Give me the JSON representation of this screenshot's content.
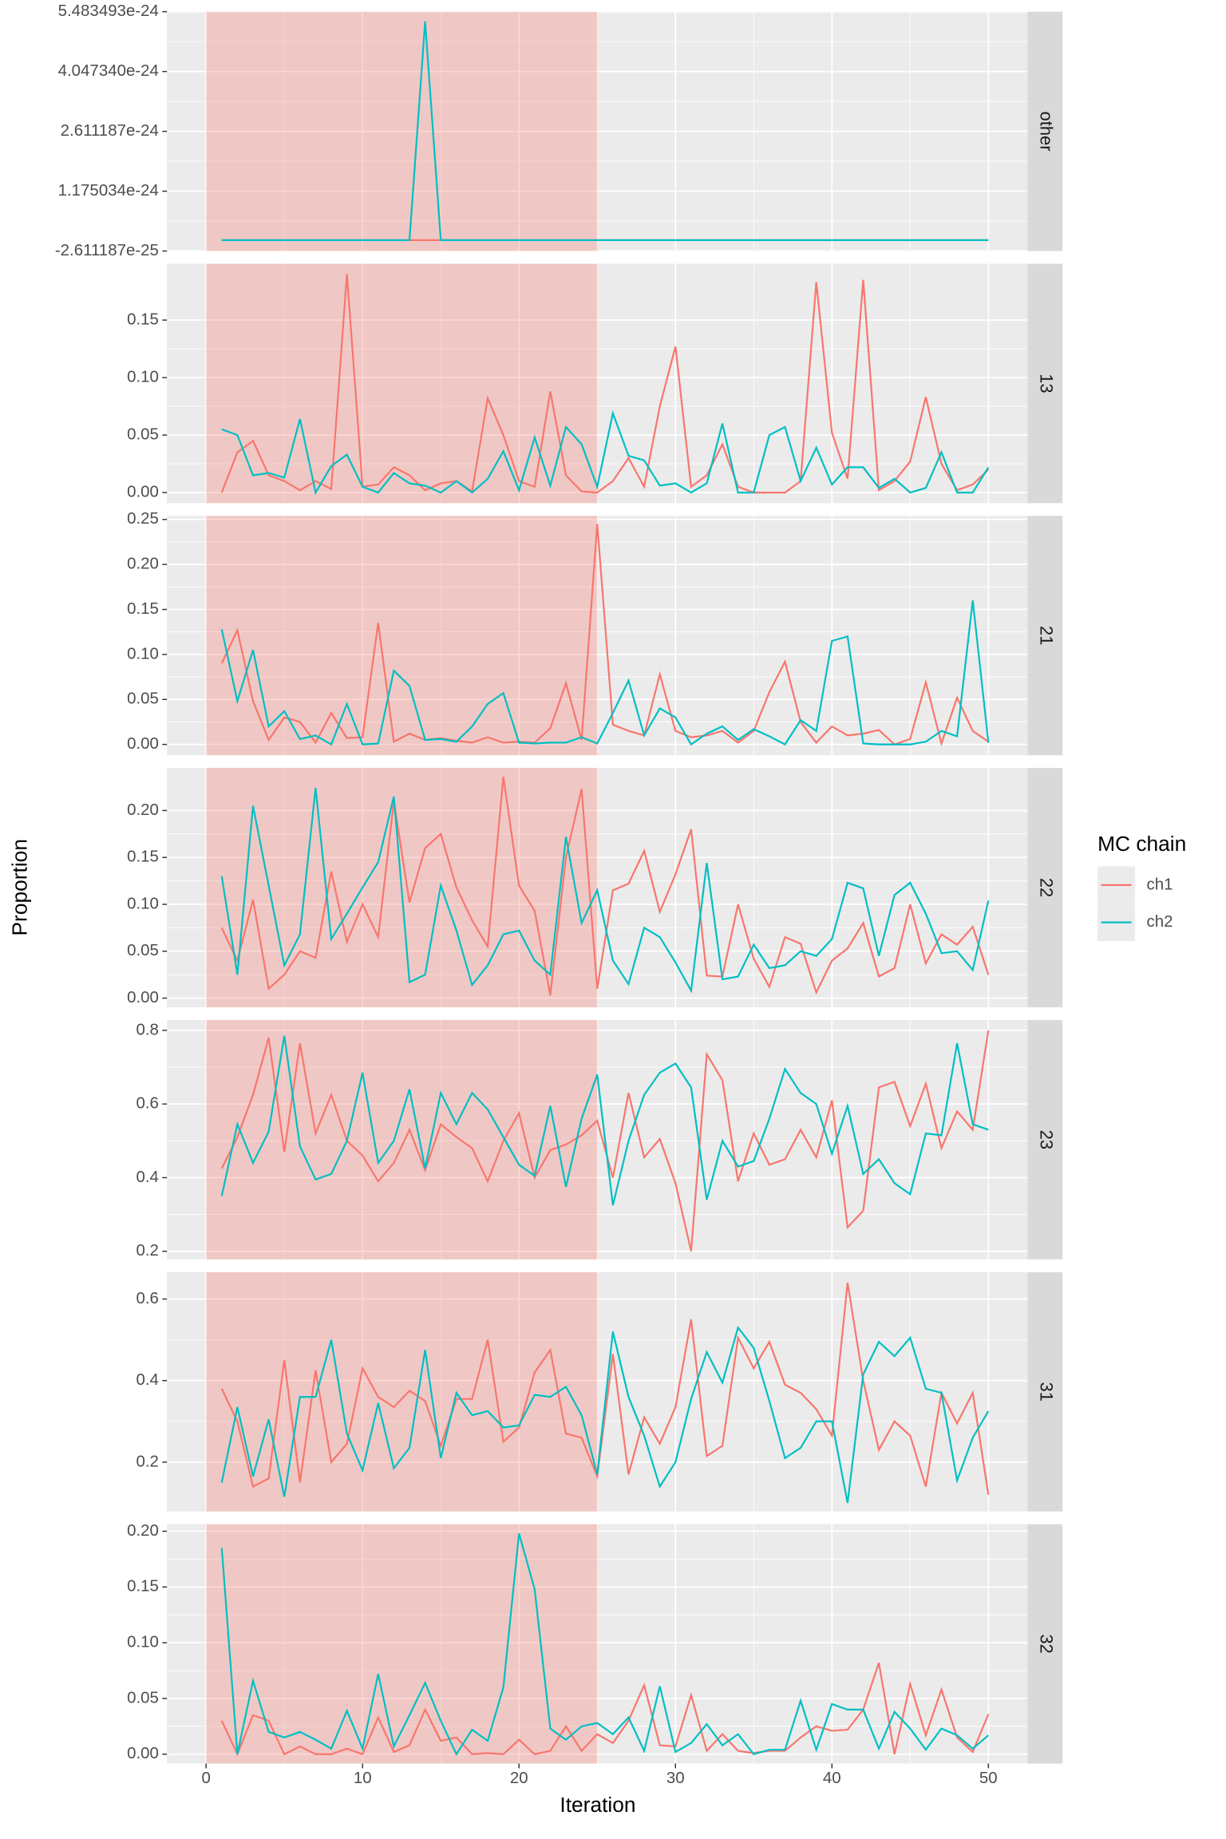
{
  "chart_data": {
    "type": "line",
    "xlabel": "Iteration",
    "ylabel": "Proportion",
    "legend_title": "MC chain",
    "grid": true,
    "shaded_x": [
      0,
      25
    ],
    "shade_color": "#F8766D",
    "x": [
      1,
      2,
      3,
      4,
      5,
      6,
      7,
      8,
      9,
      10,
      11,
      12,
      13,
      14,
      15,
      16,
      17,
      18,
      19,
      20,
      21,
      22,
      23,
      24,
      25,
      26,
      27,
      28,
      29,
      30,
      31,
      32,
      33,
      34,
      35,
      36,
      37,
      38,
      39,
      40,
      41,
      42,
      43,
      44,
      45,
      46,
      47,
      48,
      49,
      50
    ],
    "xlim": [
      -2.5,
      52.5
    ],
    "xticks": [
      0,
      10,
      20,
      30,
      40,
      50
    ],
    "panels": [
      {
        "label": "other",
        "ylim": [
          -2.611187e-25,
          5.483493e-24
        ],
        "yticks": [
          -2.611187e-25,
          1.175034e-24,
          2.611187e-24,
          {
            "value": 4.04734e-24,
            "label": "4.047340e-24"
          },
          5.483493e-24
        ],
        "series": [
          {
            "name": "ch1",
            "color": "#F8766D",
            "values": [
              0,
              0,
              0,
              0,
              0,
              0,
              0,
              0,
              0,
              0,
              0,
              0,
              0,
              0,
              0,
              0,
              0,
              0,
              0,
              0,
              0,
              0,
              0,
              0,
              0,
              0,
              0,
              0,
              0,
              0,
              0,
              0,
              0,
              0,
              0,
              0,
              0,
              0,
              0,
              0,
              0,
              0,
              0,
              0,
              0,
              0,
              0,
              0,
              0,
              0
            ]
          },
          {
            "name": "ch2",
            "color": "#00BFC4",
            "values": [
              0,
              0,
              0,
              0,
              0,
              0,
              0,
              0,
              0,
              0,
              0,
              0,
              0,
              5.25e-24,
              0,
              0,
              0,
              0,
              0,
              0,
              0,
              0,
              0,
              0,
              0,
              0,
              0,
              0,
              0,
              0,
              0,
              0,
              0,
              0,
              0,
              0,
              0,
              0,
              0,
              0,
              0,
              0,
              0,
              0,
              0,
              0,
              0,
              0,
              0,
              0
            ]
          }
        ]
      },
      {
        "label": "13",
        "ylim": [
          -0.0092,
          0.199
        ],
        "yticks": [
          {
            "value": 0,
            "label": "0.00"
          },
          {
            "value": 0.05,
            "label": "0.05"
          },
          {
            "value": 0.1,
            "label": "0.10"
          },
          {
            "value": 0.15,
            "label": "0.15"
          }
        ],
        "series": [
          {
            "name": "ch1",
            "color": "#F8766D",
            "values": [
              0,
              0.035,
              0.045,
              0.015,
              0.01,
              0.002,
              0.01,
              0.003,
              0.19,
              0.005,
              0.007,
              0.022,
              0.015,
              0.002,
              0.008,
              0.01,
              0.001,
              0.082,
              0.05,
              0.01,
              0.005,
              0.088,
              0.015,
              0.001,
              0,
              0.01,
              0.03,
              0.005,
              0.075,
              0.127,
              0.005,
              0.015,
              0.042,
              0.005,
              0,
              0,
              0,
              0.01,
              0.183,
              0.052,
              0.012,
              0.185,
              0.002,
              0.01,
              0.027,
              0.083,
              0.025,
              0.002,
              0.007,
              0.02
            ]
          },
          {
            "name": "ch2",
            "color": "#00BFC4",
            "values": [
              0.055,
              0.05,
              0.015,
              0.017,
              0.013,
              0.064,
              0,
              0.023,
              0.033,
              0.005,
              0,
              0.017,
              0.008,
              0.006,
              0,
              0.01,
              0,
              0.012,
              0.036,
              0.002,
              0.048,
              0.006,
              0.057,
              0.042,
              0.005,
              0.069,
              0.032,
              0.028,
              0.006,
              0.008,
              0,
              0.008,
              0.06,
              0,
              0,
              0.05,
              0.057,
              0.01,
              0.039,
              0.007,
              0.022,
              0.022,
              0.004,
              0.012,
              0,
              0.004,
              0.035,
              0,
              0,
              0.022
            ]
          }
        ]
      },
      {
        "label": "21",
        "ylim": [
          -0.012,
          0.254
        ],
        "yticks": [
          {
            "value": 0,
            "label": "0.00"
          },
          {
            "value": 0.05,
            "label": "0.05"
          },
          {
            "value": 0.1,
            "label": "0.10"
          },
          {
            "value": 0.15,
            "label": "0.15"
          },
          {
            "value": 0.2,
            "label": "0.20"
          },
          {
            "value": 0.25,
            "label": "0.25"
          }
        ],
        "series": [
          {
            "name": "ch1",
            "color": "#F8766D",
            "values": [
              0.09,
              0.127,
              0.048,
              0.005,
              0.03,
              0.025,
              0.002,
              0.035,
              0.007,
              0.008,
              0.135,
              0.003,
              0.012,
              0.005,
              0.007,
              0.004,
              0.002,
              0.008,
              0.002,
              0.003,
              0.002,
              0.018,
              0.068,
              0.005,
              0.245,
              0.022,
              0.015,
              0.01,
              0.078,
              0.015,
              0.008,
              0.01,
              0.015,
              0.002,
              0.015,
              0.058,
              0.092,
              0.025,
              0.002,
              0.02,
              0.01,
              0.012,
              0.016,
              0,
              0.006,
              0.069,
              0.001,
              0.052,
              0.015,
              0.003
            ]
          },
          {
            "name": "ch2",
            "color": "#00BFC4",
            "values": [
              0.128,
              0.048,
              0.105,
              0.02,
              0.037,
              0.006,
              0.01,
              0,
              0.045,
              0,
              0.001,
              0.082,
              0.065,
              0.005,
              0.006,
              0.003,
              0.02,
              0.045,
              0.057,
              0.002,
              0.001,
              0.002,
              0.002,
              0.008,
              0.001,
              0.035,
              0.071,
              0.01,
              0.04,
              0.03,
              0,
              0.012,
              0.02,
              0.005,
              0.017,
              0.009,
              0,
              0.027,
              0.015,
              0.115,
              0.12,
              0.001,
              0,
              0,
              0,
              0.003,
              0.015,
              0.009,
              0.16,
              0.002
            ]
          }
        ]
      },
      {
        "label": "22",
        "ylim": [
          -0.0098,
          0.2454
        ],
        "yticks": [
          {
            "value": 0,
            "label": "0.00"
          },
          {
            "value": 0.05,
            "label": "0.05"
          },
          {
            "value": 0.1,
            "label": "0.10"
          },
          {
            "value": 0.15,
            "label": "0.15"
          },
          {
            "value": 0.2,
            "label": "0.20"
          }
        ],
        "series": [
          {
            "name": "ch1",
            "color": "#F8766D",
            "values": [
              0.075,
              0.04,
              0.105,
              0.01,
              0.025,
              0.05,
              0.043,
              0.135,
              0.06,
              0.1,
              0.065,
              0.21,
              0.102,
              0.16,
              0.175,
              0.118,
              0.083,
              0.055,
              0.236,
              0.12,
              0.093,
              0.003,
              0.15,
              0.223,
              0.01,
              0.115,
              0.122,
              0.157,
              0.092,
              0.132,
              0.18,
              0.024,
              0.023,
              0.1,
              0.042,
              0.012,
              0.065,
              0.058,
              0.006,
              0.04,
              0.053,
              0.08,
              0.023,
              0.032,
              0.1,
              0.037,
              0.068,
              0.057,
              0.076,
              0.025
            ]
          },
          {
            "name": "ch2",
            "color": "#00BFC4",
            "values": [
              0.13,
              0.025,
              0.205,
              0.12,
              0.035,
              0.068,
              0.224,
              0.063,
              0.09,
              0.118,
              0.145,
              0.215,
              0.017,
              0.025,
              0.12,
              0.072,
              0.014,
              0.035,
              0.068,
              0.072,
              0.04,
              0.025,
              0.172,
              0.08,
              0.115,
              0.04,
              0.015,
              0.075,
              0.065,
              0.038,
              0.008,
              0.144,
              0.02,
              0.023,
              0.057,
              0.032,
              0.035,
              0.05,
              0.045,
              0.063,
              0.123,
              0.117,
              0.045,
              0.11,
              0.123,
              0.09,
              0.048,
              0.05,
              0.03,
              0.104
            ]
          }
        ]
      },
      {
        "label": "23",
        "ylim": [
          0.178,
          0.828
        ],
        "yticks": [
          0.2,
          0.4,
          0.6,
          0.8
        ],
        "series": [
          {
            "name": "ch1",
            "color": "#F8766D",
            "values": [
              0.425,
              0.51,
              0.625,
              0.78,
              0.47,
              0.765,
              0.52,
              0.625,
              0.5,
              0.46,
              0.39,
              0.44,
              0.53,
              0.42,
              0.545,
              0.51,
              0.48,
              0.39,
              0.5,
              0.575,
              0.4,
              0.475,
              0.49,
              0.515,
              0.555,
              0.4,
              0.63,
              0.455,
              0.505,
              0.385,
              0.2,
              0.735,
              0.665,
              0.39,
              0.52,
              0.435,
              0.45,
              0.53,
              0.455,
              0.61,
              0.265,
              0.31,
              0.645,
              0.66,
              0.54,
              0.655,
              0.48,
              0.58,
              0.53,
              0.8
            ]
          },
          {
            "name": "ch2",
            "color": "#00BFC4",
            "values": [
              0.35,
              0.545,
              0.44,
              0.525,
              0.785,
              0.485,
              0.395,
              0.41,
              0.5,
              0.685,
              0.44,
              0.5,
              0.64,
              0.425,
              0.63,
              0.545,
              0.63,
              0.585,
              0.51,
              0.435,
              0.405,
              0.595,
              0.375,
              0.56,
              0.68,
              0.325,
              0.5,
              0.625,
              0.685,
              0.71,
              0.645,
              0.34,
              0.5,
              0.43,
              0.445,
              0.56,
              0.695,
              0.63,
              0.6,
              0.465,
              0.595,
              0.41,
              0.45,
              0.385,
              0.355,
              0.52,
              0.515,
              0.765,
              0.545,
              0.53
            ]
          }
        ]
      },
      {
        "label": "31",
        "ylim": [
          0.079,
          0.666
        ],
        "yticks": [
          0.2,
          0.4,
          0.6
        ],
        "series": [
          {
            "name": "ch1",
            "color": "#F8766D",
            "values": [
              0.38,
              0.3,
              0.14,
              0.16,
              0.45,
              0.15,
              0.425,
              0.2,
              0.245,
              0.43,
              0.36,
              0.335,
              0.375,
              0.35,
              0.24,
              0.355,
              0.355,
              0.5,
              0.25,
              0.285,
              0.42,
              0.475,
              0.27,
              0.26,
              0.165,
              0.465,
              0.17,
              0.31,
              0.245,
              0.335,
              0.55,
              0.215,
              0.24,
              0.505,
              0.43,
              0.495,
              0.39,
              0.37,
              0.33,
              0.265,
              0.64,
              0.4,
              0.23,
              0.3,
              0.265,
              0.14,
              0.37,
              0.295,
              0.37,
              0.12
            ]
          },
          {
            "name": "ch2",
            "color": "#00BFC4",
            "values": [
              0.15,
              0.335,
              0.165,
              0.305,
              0.115,
              0.36,
              0.36,
              0.5,
              0.27,
              0.18,
              0.345,
              0.185,
              0.235,
              0.475,
              0.21,
              0.37,
              0.315,
              0.325,
              0.285,
              0.29,
              0.365,
              0.36,
              0.385,
              0.315,
              0.17,
              0.52,
              0.36,
              0.265,
              0.14,
              0.2,
              0.355,
              0.47,
              0.395,
              0.53,
              0.48,
              0.35,
              0.21,
              0.235,
              0.3,
              0.3,
              0.1,
              0.415,
              0.495,
              0.46,
              0.505,
              0.38,
              0.37,
              0.155,
              0.26,
              0.325
            ]
          }
        ]
      },
      {
        "label": "32",
        "ylim": [
          -0.0084,
          0.2063
        ],
        "yticks": [
          {
            "value": 0,
            "label": "0.00"
          },
          {
            "value": 0.05,
            "label": "0.05"
          },
          {
            "value": 0.1,
            "label": "0.10"
          },
          {
            "value": 0.15,
            "label": "0.15"
          },
          {
            "value": 0.2,
            "label": "0.20"
          }
        ],
        "series": [
          {
            "name": "ch1",
            "color": "#F8766D",
            "values": [
              0.03,
              0,
              0.035,
              0.03,
              0,
              0.007,
              0,
              0,
              0.005,
              0,
              0.033,
              0.002,
              0.008,
              0.04,
              0.012,
              0.015,
              0,
              0.001,
              0,
              0.013,
              0,
              0.003,
              0.025,
              0.003,
              0.018,
              0.01,
              0.03,
              0.062,
              0.008,
              0.007,
              0.053,
              0.003,
              0.018,
              0.003,
              0.001,
              0.003,
              0.003,
              0.015,
              0.025,
              0.021,
              0.022,
              0.04,
              0.082,
              0,
              0.063,
              0.017,
              0.058,
              0.015,
              0.002,
              0.036
            ]
          },
          {
            "name": "ch2",
            "color": "#00BFC4",
            "values": [
              0.185,
              0,
              0.066,
              0.02,
              0.015,
              0.02,
              0.013,
              0.005,
              0.039,
              0.005,
              0.072,
              0.007,
              0.035,
              0.064,
              0.03,
              0,
              0.022,
              0.012,
              0.06,
              0.198,
              0.148,
              0.023,
              0.013,
              0.025,
              0.028,
              0.018,
              0.033,
              0.003,
              0.061,
              0.002,
              0.01,
              0.027,
              0.008,
              0.018,
              0,
              0.004,
              0.004,
              0.048,
              0.004,
              0.045,
              0.04,
              0.04,
              0.005,
              0.038,
              0.023,
              0.004,
              0.023,
              0.017,
              0.005,
              0.017
            ]
          }
        ]
      }
    ]
  }
}
